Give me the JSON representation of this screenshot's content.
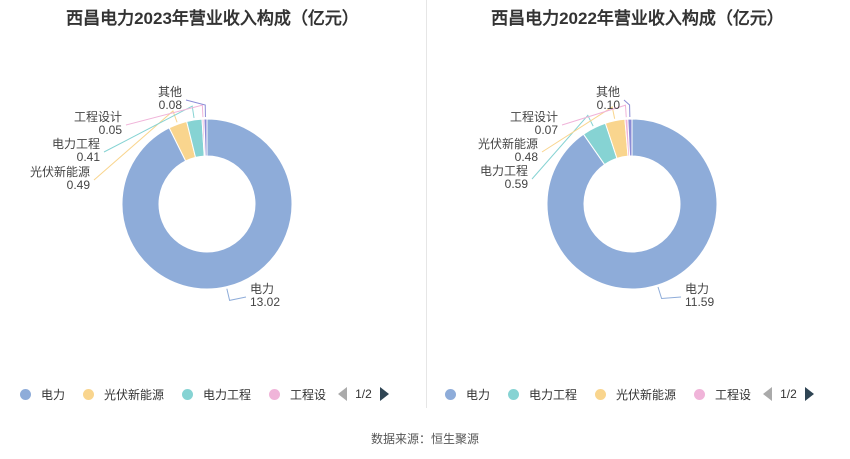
{
  "chart_data": [
    {
      "type": "pie",
      "title": "西昌电力2023年营业收入构成（亿元）",
      "series": [
        {
          "name": "电力",
          "value": 13.02,
          "value_text": "13.02",
          "color": "#8eacd9"
        },
        {
          "name": "光伏新能源",
          "value": 0.49,
          "value_text": "0.49",
          "color": "#f9d58e"
        },
        {
          "name": "电力工程",
          "value": 0.41,
          "value_text": "0.41",
          "color": "#86d3d3"
        },
        {
          "name": "工程设计",
          "value": 0.05,
          "value_text": "0.05",
          "color": "#f0b4d9"
        },
        {
          "name": "其他",
          "value": 0.08,
          "value_text": "0.08",
          "color": "#8b8cd6"
        }
      ],
      "legend": {
        "items": [
          "电力",
          "光伏新能源",
          "电力工程",
          "工程设"
        ],
        "page": "1/2",
        "placement": "bottom"
      }
    },
    {
      "type": "pie",
      "title": "西昌电力2022年营业收入构成（亿元）",
      "series": [
        {
          "name": "电力",
          "value": 11.59,
          "value_text": "11.59",
          "color": "#8eacd9"
        },
        {
          "name": "电力工程",
          "value": 0.59,
          "value_text": "0.59",
          "color": "#86d3d3"
        },
        {
          "name": "光伏新能源",
          "value": 0.48,
          "value_text": "0.48",
          "color": "#f9d58e"
        },
        {
          "name": "工程设计",
          "value": 0.07,
          "value_text": "0.07",
          "color": "#f0b4d9"
        },
        {
          "name": "其他",
          "value": 0.1,
          "value_text": "0.10",
          "color": "#8b8cd6"
        }
      ],
      "legend": {
        "items": [
          "电力",
          "电力工程",
          "光伏新能源",
          "工程设"
        ],
        "page": "1/2",
        "placement": "bottom"
      }
    }
  ],
  "source": "数据来源：恒生聚源"
}
